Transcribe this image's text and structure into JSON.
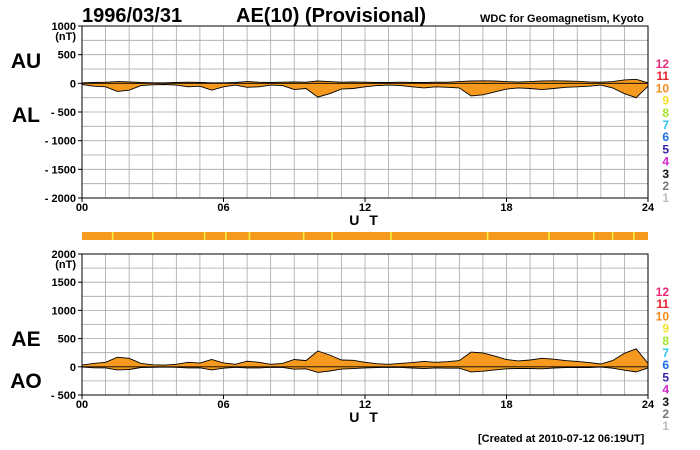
{
  "header": {
    "date": "1996/03/31",
    "title": "AE(10) (Provisional)",
    "org": "WDC for Geomagnetism, Kyoto"
  },
  "footer": {
    "created": "[Created at 2010-07-12 06:19UT]"
  },
  "colors": {
    "fill": "#f59a1e",
    "trace": "#000000",
    "strip": "#f59a1e",
    "strip_gap": "#f4ee3c",
    "count_colors": {
      "12": "#ee2a7b",
      "11": "#e8202a",
      "10": "#f58a1e",
      "9": "#f5e12a",
      "8": "#a6e22e",
      "7": "#2ac7ee",
      "6": "#1e6ee8",
      "5": "#3a1eaa",
      "4": "#cc22cc",
      "3": "#111111",
      "2": "#777777",
      "1": "#bbbbbb"
    }
  },
  "chart_data": [
    {
      "type": "area",
      "name": "AU/AL",
      "labels": {
        "upper": "AU",
        "lower": "AL"
      },
      "unit": "(nT)",
      "xlabel": "U T",
      "xlim": [
        0,
        24
      ],
      "xticks": [
        0,
        6,
        12,
        18,
        24
      ],
      "xtick_labels": [
        "00",
        "06",
        "12",
        "18",
        "24"
      ],
      "ylim": [
        -2000,
        1000
      ],
      "yticks": [
        1000,
        500,
        0,
        -500,
        -1000,
        -1500,
        -2000
      ],
      "ytick_labels": [
        "1000",
        "500",
        "0",
        "- 500",
        "- 1000",
        "- 1500",
        "- 2000"
      ],
      "station_counts": [
        "12",
        "11",
        "10",
        "9",
        "8",
        "7",
        "6",
        "5",
        "4",
        "3",
        "2",
        "1"
      ],
      "series": [
        {
          "name": "AU",
          "x": [
            0,
            0.5,
            1,
            1.5,
            2,
            2.5,
            3,
            3.5,
            4,
            4.5,
            5,
            5.5,
            6,
            6.5,
            7,
            7.5,
            8,
            8.5,
            9,
            9.5,
            10,
            10.5,
            11,
            11.5,
            12,
            12.5,
            13,
            13.5,
            14,
            14.5,
            15,
            15.5,
            16,
            16.5,
            17,
            17.5,
            18,
            18.5,
            19,
            19.5,
            20,
            20.5,
            21,
            21.5,
            22,
            22.5,
            23,
            23.5,
            24
          ],
          "y": [
            10,
            15,
            20,
            30,
            25,
            15,
            10,
            10,
            15,
            20,
            15,
            10,
            10,
            15,
            30,
            20,
            15,
            20,
            25,
            20,
            40,
            30,
            20,
            25,
            20,
            15,
            15,
            20,
            15,
            15,
            20,
            20,
            30,
            40,
            45,
            40,
            30,
            25,
            30,
            40,
            45,
            40,
            35,
            25,
            20,
            30,
            60,
            70,
            10
          ]
        },
        {
          "name": "AL",
          "x": [
            0,
            0.5,
            1,
            1.5,
            2,
            2.5,
            3,
            3.5,
            4,
            4.5,
            5,
            5.5,
            6,
            6.5,
            7,
            7.5,
            8,
            8.5,
            9,
            9.5,
            10,
            10.5,
            11,
            11.5,
            12,
            12.5,
            13,
            13.5,
            14,
            14.5,
            15,
            15.5,
            16,
            16.5,
            17,
            17.5,
            18,
            18.5,
            19,
            19.5,
            20,
            20.5,
            21,
            21.5,
            22,
            22.5,
            23,
            23.5,
            24
          ],
          "y": [
            -20,
            -50,
            -60,
            -140,
            -120,
            -40,
            -25,
            -20,
            -30,
            -60,
            -50,
            -120,
            -60,
            -30,
            -70,
            -60,
            -30,
            -40,
            -110,
            -90,
            -240,
            -180,
            -100,
            -90,
            -60,
            -40,
            -30,
            -40,
            -60,
            -80,
            -60,
            -70,
            -80,
            -220,
            -200,
            -150,
            -100,
            -80,
            -90,
            -110,
            -90,
            -70,
            -60,
            -50,
            -30,
            -80,
            -180,
            -250,
            -50
          ]
        }
      ]
    },
    {
      "type": "area",
      "name": "AE/AO",
      "labels": {
        "upper": "AE",
        "lower": "AO"
      },
      "unit": "(nT)",
      "xlabel": "U T",
      "xlim": [
        0,
        24
      ],
      "xticks": [
        0,
        6,
        12,
        18,
        24
      ],
      "xtick_labels": [
        "00",
        "06",
        "12",
        "18",
        "24"
      ],
      "ylim": [
        -500,
        2000
      ],
      "yticks": [
        2000,
        1500,
        1000,
        500,
        0,
        -500
      ],
      "ytick_labels": [
        "2000",
        "1500",
        "1000",
        "500",
        "0",
        "- 500"
      ],
      "station_counts": [
        "12",
        "11",
        "10",
        "9",
        "8",
        "7",
        "6",
        "5",
        "4",
        "3",
        "2",
        "1"
      ],
      "series": [
        {
          "name": "AE",
          "x": [
            0,
            0.5,
            1,
            1.5,
            2,
            2.5,
            3,
            3.5,
            4,
            4.5,
            5,
            5.5,
            6,
            6.5,
            7,
            7.5,
            8,
            8.5,
            9,
            9.5,
            10,
            10.5,
            11,
            11.5,
            12,
            12.5,
            13,
            13.5,
            14,
            14.5,
            15,
            15.5,
            16,
            16.5,
            17,
            17.5,
            18,
            18.5,
            19,
            19.5,
            20,
            20.5,
            21,
            21.5,
            22,
            22.5,
            23,
            23.5,
            24
          ],
          "y": [
            30,
            60,
            80,
            170,
            150,
            60,
            35,
            30,
            45,
            80,
            65,
            130,
            70,
            45,
            100,
            80,
            45,
            60,
            130,
            110,
            280,
            210,
            120,
            115,
            80,
            55,
            45,
            60,
            75,
            95,
            80,
            90,
            110,
            260,
            245,
            190,
            130,
            105,
            120,
            150,
            135,
            110,
            95,
            75,
            50,
            110,
            240,
            320,
            60
          ]
        },
        {
          "name": "AO",
          "x": [
            0,
            0.5,
            1,
            1.5,
            2,
            2.5,
            3,
            3.5,
            4,
            4.5,
            5,
            5.5,
            6,
            6.5,
            7,
            7.5,
            8,
            8.5,
            9,
            9.5,
            10,
            10.5,
            11,
            11.5,
            12,
            12.5,
            13,
            13.5,
            14,
            14.5,
            15,
            15.5,
            16,
            16.5,
            17,
            17.5,
            18,
            18.5,
            19,
            19.5,
            20,
            20.5,
            21,
            21.5,
            22,
            22.5,
            23,
            23.5,
            24
          ],
          "y": [
            -5,
            -18,
            -20,
            -55,
            -48,
            -12,
            -8,
            -5,
            -8,
            -20,
            -18,
            -55,
            -25,
            -8,
            -20,
            -20,
            -8,
            -10,
            -42,
            -35,
            -100,
            -75,
            -40,
            -32,
            -20,
            -12,
            -8,
            -10,
            -22,
            -32,
            -20,
            -25,
            -25,
            -90,
            -78,
            -55,
            -35,
            -28,
            -30,
            -35,
            -22,
            -15,
            -12,
            -12,
            -5,
            -25,
            -60,
            -90,
            -20
          ]
        }
      ]
    }
  ],
  "strip": {
    "gaps": [
      1.3,
      3.0,
      5.2,
      6.1,
      7.1,
      9.4,
      10.6,
      13.1,
      17.2,
      19.8,
      21.7,
      22.5,
      23.4
    ]
  }
}
